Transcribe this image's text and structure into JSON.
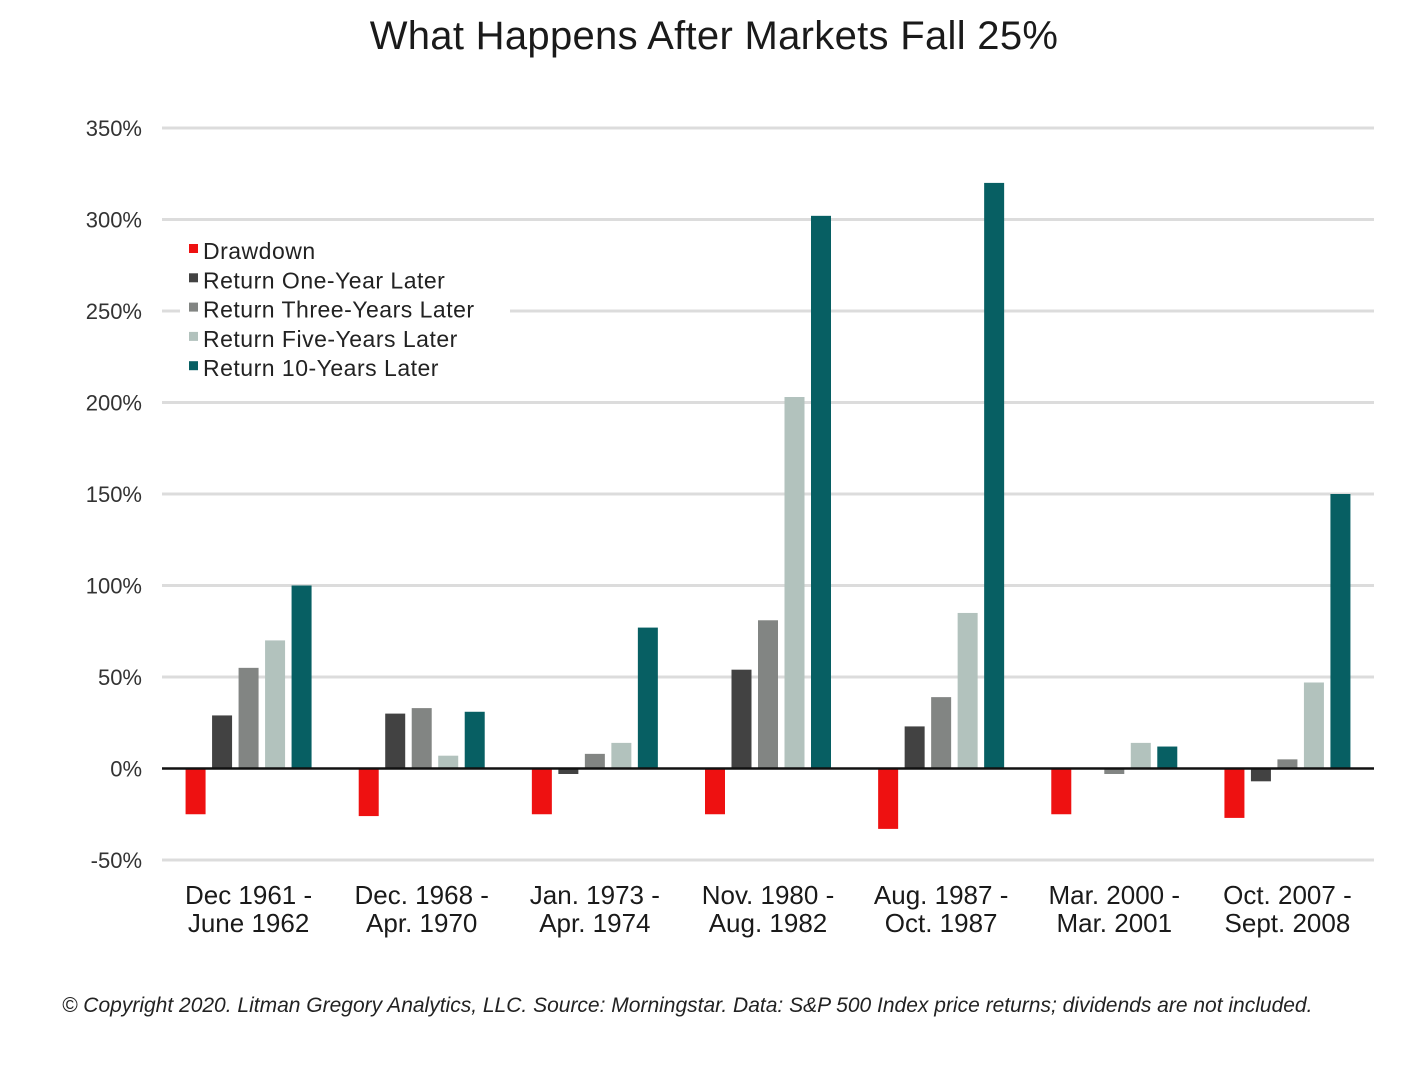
{
  "chart_data": {
    "type": "bar",
    "title": "What Happens After Markets Fall 25%",
    "xlabel": "",
    "ylabel": "",
    "ylim": [
      -50,
      350
    ],
    "yticks": [
      "350%",
      "300%",
      "250%",
      "200%",
      "150%",
      "100%",
      "50%",
      "0%",
      "-50%"
    ],
    "ytick_values": [
      350,
      300,
      250,
      200,
      150,
      100,
      50,
      0,
      -50
    ],
    "grid": true,
    "legend_position": "top-left",
    "categories": [
      [
        "Dec 1961 -",
        "June 1962"
      ],
      [
        "Dec. 1968 -",
        "Apr. 1970"
      ],
      [
        "Jan. 1973 -",
        "Apr. 1974"
      ],
      [
        "Nov. 1980 -",
        "Aug. 1982"
      ],
      [
        "Aug. 1987 -",
        "Oct. 1987"
      ],
      [
        "Mar. 2000 -",
        "Mar. 2001"
      ],
      [
        "Oct. 2007 -",
        "Sept. 2008"
      ]
    ],
    "series": [
      {
        "name": "Drawdown",
        "color": "#ee1111",
        "values": [
          -25,
          -26,
          -25,
          -25,
          -33,
          -25,
          -27
        ]
      },
      {
        "name": "Return One-Year Later",
        "color": "#424242",
        "values": [
          29,
          30,
          -3,
          54,
          23,
          0,
          -7
        ]
      },
      {
        "name": "Return Three-Years Later",
        "color": "#828583",
        "values": [
          55,
          33,
          8,
          81,
          39,
          -3,
          5
        ]
      },
      {
        "name": "Return Five-Years Later",
        "color": "#b2c2bd",
        "values": [
          70,
          7,
          14,
          203,
          85,
          14,
          47
        ]
      },
      {
        "name": "Return 10-Years Later",
        "color": "#075f63",
        "values": [
          100,
          31,
          77,
          302,
          320,
          12,
          150
        ]
      }
    ]
  },
  "footnote": "© Copyright 2020. Litman Gregory Analytics, LLC. Source:  Morningstar. Data: S&P 500 Index price returns; dividends are not included."
}
